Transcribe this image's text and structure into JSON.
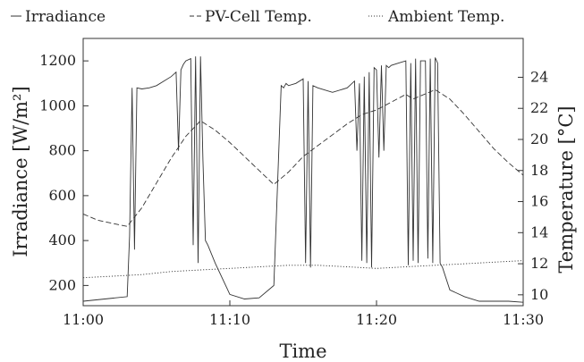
{
  "chart_data": {
    "type": "line",
    "xlabel": "Time",
    "ylabel": "Irradiance  [W/m²]",
    "y2label": "Temperature  [°C]",
    "xlim": [
      "11:00",
      "11:30"
    ],
    "ylim": [
      110,
      1300
    ],
    "y2lim": [
      9.3,
      26.5
    ],
    "xticks": [
      "11:00",
      "11:10",
      "11:20",
      "11:30"
    ],
    "yticks": [
      200,
      400,
      600,
      800,
      1000,
      1200
    ],
    "y2ticks": [
      10,
      12,
      14,
      16,
      18,
      20,
      22,
      24
    ],
    "legend_position": "top",
    "grid": false,
    "series": [
      {
        "name": "Irradiance",
        "axis": "left",
        "style": "solid",
        "x": [
          "11:00:00",
          "11:03:00",
          "11:03:10",
          "11:03:20",
          "11:03:30",
          "11:03:40",
          "11:04:00",
          "11:04:30",
          "11:05:00",
          "11:05:30",
          "11:06:00",
          "11:06:20",
          "11:06:30",
          "11:06:40",
          "11:06:50",
          "11:07:00",
          "11:07:20",
          "11:07:30",
          "11:07:40",
          "11:07:50",
          "11:08:00",
          "11:08:10",
          "11:08:20",
          "11:08:30",
          "11:09:00",
          "11:10:00",
          "11:11:00",
          "11:12:00",
          "11:13:00",
          "11:13:30",
          "11:13:40",
          "11:13:50",
          "11:14:00",
          "11:14:30",
          "11:15:00",
          "11:15:10",
          "11:15:20",
          "11:15:30",
          "11:15:40",
          "11:16:00",
          "11:17:00",
          "11:18:00",
          "11:18:30",
          "11:18:40",
          "11:18:50",
          "11:19:00",
          "11:19:10",
          "11:19:20",
          "11:19:30",
          "11:19:40",
          "11:19:50",
          "11:20:00",
          "11:20:10",
          "11:20:20",
          "11:20:30",
          "11:20:40",
          "11:20:50",
          "11:21:00",
          "11:21:30",
          "11:22:00",
          "11:22:10",
          "11:22:20",
          "11:22:30",
          "11:22:40",
          "11:22:50",
          "11:23:00",
          "11:23:20",
          "11:23:30",
          "11:23:40",
          "11:23:50",
          "11:24:00",
          "11:24:10",
          "11:24:20",
          "11:24:30",
          "11:25:00",
          "11:26:00",
          "11:27:00",
          "11:28:00",
          "11:29:00",
          "11:30:00"
        ],
        "y": [
          130,
          150,
          420,
          1080,
          360,
          1080,
          1075,
          1080,
          1090,
          1110,
          1130,
          1150,
          800,
          1160,
          1185,
          1200,
          1210,
          380,
          1220,
          300,
          1220,
          760,
          400,
          380,
          300,
          160,
          140,
          145,
          200,
          1090,
          1080,
          1100,
          1090,
          1100,
          1120,
          300,
          1110,
          280,
          1090,
          1080,
          1060,
          1080,
          1110,
          800,
          1100,
          310,
          1130,
          300,
          1150,
          280,
          1170,
          1160,
          770,
          1180,
          800,
          1180,
          1170,
          1180,
          1190,
          1200,
          290,
          1190,
          310,
          1210,
          300,
          1200,
          1200,
          320,
          1210,
          300,
          1215,
          1190,
          300,
          280,
          180,
          150,
          130,
          130,
          130,
          125
        ]
      },
      {
        "name": "PV-Cell Temp.",
        "axis": "right",
        "style": "dashed",
        "x": [
          "11:00:00",
          "11:01:00",
          "11:02:00",
          "11:03:00",
          "11:04:00",
          "11:05:00",
          "11:06:00",
          "11:07:00",
          "11:08:00",
          "11:09:00",
          "11:10:00",
          "11:11:00",
          "11:12:00",
          "11:13:00",
          "11:14:00",
          "11:15:00",
          "11:16:00",
          "11:17:00",
          "11:18:00",
          "11:19:00",
          "11:20:00",
          "11:21:00",
          "11:22:00",
          "11:22:30",
          "11:23:00",
          "11:24:00",
          "11:25:00",
          "11:26:00",
          "11:27:00",
          "11:28:00",
          "11:29:00",
          "11:30:00"
        ],
        "y": [
          15.2,
          14.8,
          14.6,
          14.4,
          15.6,
          17.2,
          18.8,
          20.2,
          21.2,
          20.6,
          19.8,
          18.9,
          18.0,
          17.1,
          17.9,
          18.9,
          19.6,
          20.3,
          21.0,
          21.6,
          21.9,
          22.4,
          22.9,
          22.6,
          22.8,
          23.2,
          22.6,
          21.6,
          20.5,
          19.4,
          18.5,
          17.7
        ]
      },
      {
        "name": "Ambient Temp.",
        "axis": "right",
        "style": "dotted",
        "x": [
          "11:00:00",
          "11:02:00",
          "11:04:00",
          "11:06:00",
          "11:08:00",
          "11:10:00",
          "11:12:00",
          "11:14:00",
          "11:16:00",
          "11:18:00",
          "11:20:00",
          "11:22:00",
          "11:24:00",
          "11:26:00",
          "11:28:00",
          "11:30:00"
        ],
        "y": [
          11.1,
          11.2,
          11.3,
          11.5,
          11.6,
          11.7,
          11.8,
          11.9,
          11.9,
          11.8,
          11.7,
          11.8,
          11.9,
          12.0,
          12.1,
          12.2
        ]
      }
    ]
  }
}
